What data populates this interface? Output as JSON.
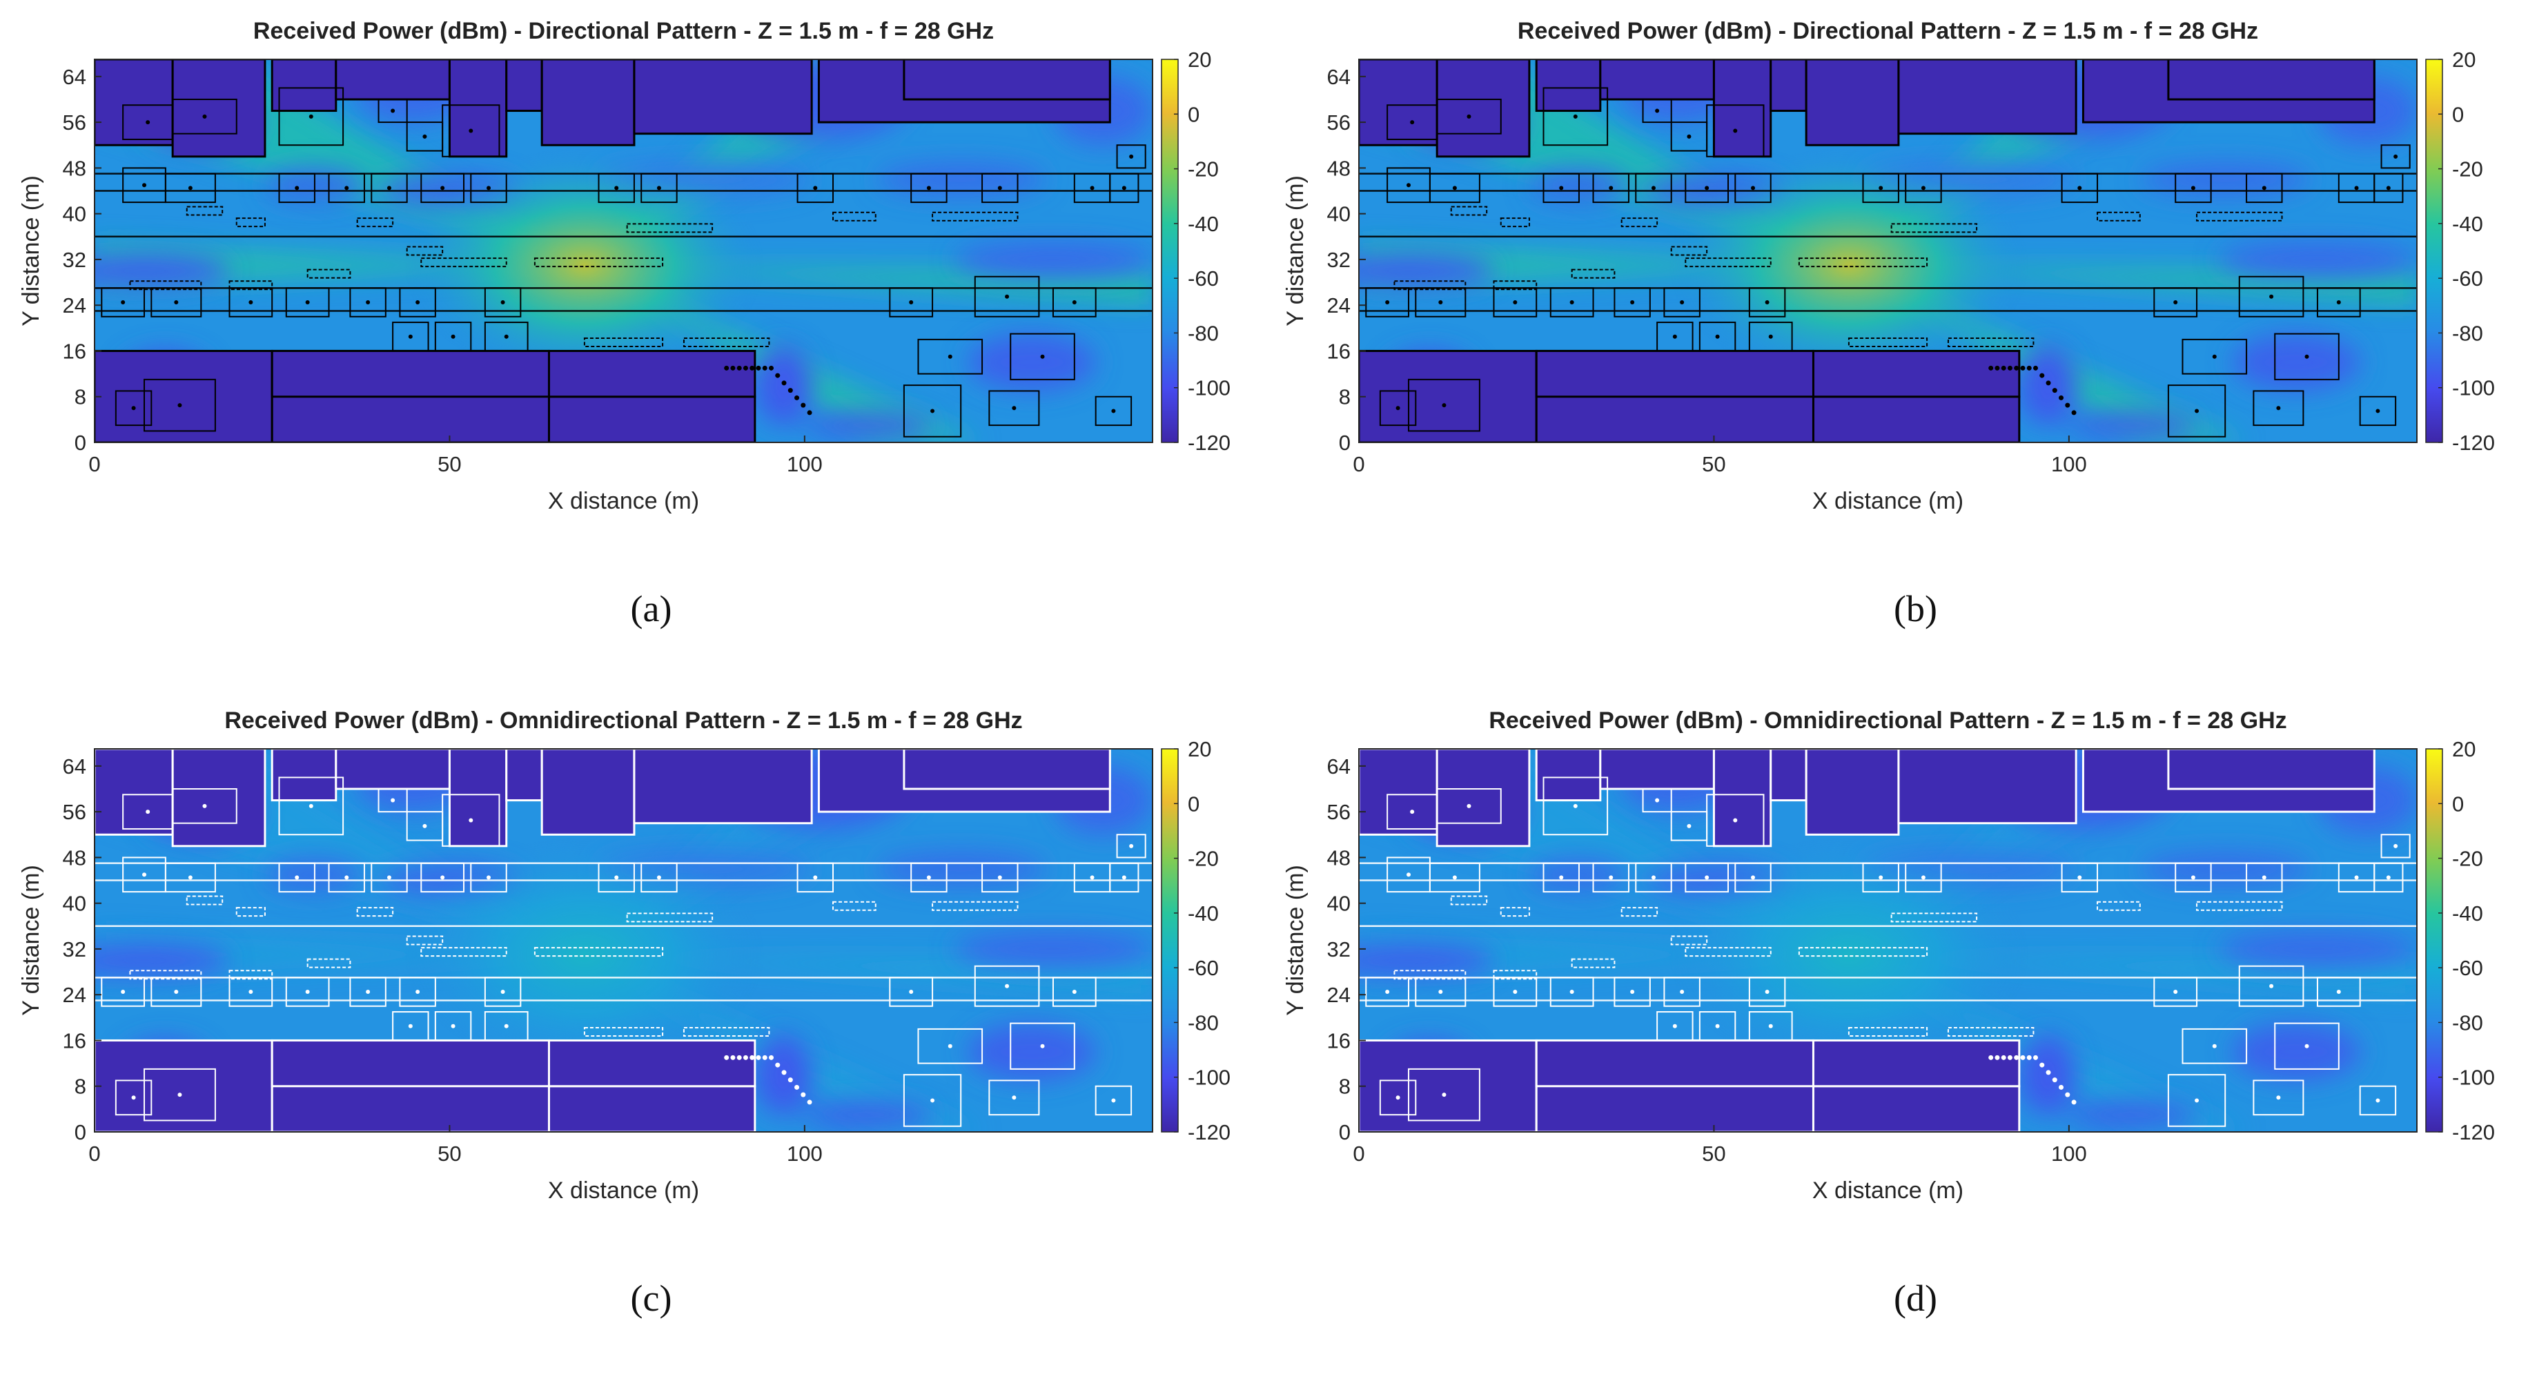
{
  "chart_data": [
    {
      "type": "heatmap",
      "title": "Received Power (dBm) - Directional Pattern - Z = 1.5 m - f = 28 GHz",
      "xlabel": "X distance (m)",
      "ylabel": "Y distance (m)",
      "xticks": [
        0,
        50,
        100
      ],
      "yticks": [
        0,
        8,
        16,
        24,
        32,
        40,
        48,
        56,
        64
      ],
      "xlim": [
        0,
        149
      ],
      "ylim": [
        0,
        67
      ],
      "colorbar": {
        "label": "Received Power (dBm)",
        "ticks": [
          20,
          0,
          -20,
          -40,
          -60,
          -80,
          -100,
          -120
        ],
        "range": [
          -120,
          20
        ]
      },
      "hotspot": {
        "x": 69,
        "y": 31,
        "value_dBm": -10
      },
      "building_outline_color": "#000000",
      "caption": "(a)"
    },
    {
      "type": "heatmap",
      "title": "Received Power (dBm) - Directional Pattern - Z = 1.5 m - f = 28 GHz",
      "xlabel": "X distance (m)",
      "ylabel": "Y distance (m)",
      "xticks": [
        0,
        50,
        100
      ],
      "yticks": [
        0,
        8,
        16,
        24,
        32,
        40,
        48,
        56,
        64
      ],
      "xlim": [
        0,
        149
      ],
      "ylim": [
        0,
        67
      ],
      "colorbar": {
        "label": "Received Power (dBm)",
        "ticks": [
          20,
          0,
          -20,
          -40,
          -60,
          -80,
          -100,
          -120
        ],
        "range": [
          -120,
          20
        ]
      },
      "hotspot": {
        "x": 69,
        "y": 31,
        "value_dBm": -10
      },
      "building_outline_color": "#000000",
      "caption": "(b)"
    },
    {
      "type": "heatmap",
      "title": "Received Power (dBm) - Omnidirectional Pattern - Z = 1.5 m - f = 28 GHz",
      "xlabel": "X distance (m)",
      "ylabel": "Y distance (m)",
      "xticks": [
        0,
        50,
        100
      ],
      "yticks": [
        0,
        8,
        16,
        24,
        32,
        40,
        48,
        56,
        64
      ],
      "xlim": [
        0,
        149
      ],
      "ylim": [
        0,
        67
      ],
      "colorbar": {
        "label": "Received Power (dBm)",
        "ticks": [
          20,
          0,
          -20,
          -40,
          -60,
          -80,
          -100,
          -120
        ],
        "range": [
          -120,
          20
        ]
      },
      "hotspot": {
        "x": 69,
        "y": 31,
        "value_dBm": -55
      },
      "building_outline_color": "#ffffff",
      "caption": "(c)"
    },
    {
      "type": "heatmap",
      "title": "Received Power (dBm) - Omnidirectional Pattern - Z = 1.5 m - f = 28 GHz",
      "xlabel": "X distance (m)",
      "ylabel": "Y distance (m)",
      "xticks": [
        0,
        50,
        100
      ],
      "yticks": [
        0,
        8,
        16,
        24,
        32,
        40,
        48,
        56,
        64
      ],
      "xlim": [
        0,
        149
      ],
      "ylim": [
        0,
        67
      ],
      "colorbar": {
        "label": "Received Power (dBm)",
        "ticks": [
          20,
          0,
          -20,
          -40,
          -60,
          -80,
          -100,
          -120
        ],
        "range": [
          -120,
          20
        ]
      },
      "hotspot": {
        "x": 69,
        "y": 31,
        "value_dBm": -55
      },
      "building_outline_color": "#ffffff",
      "caption": "(d)"
    }
  ],
  "buildings": [
    [
      0,
      52,
      11,
      67
    ],
    [
      11,
      50,
      24,
      67
    ],
    [
      25,
      58,
      34,
      67
    ],
    [
      34,
      60,
      50,
      67
    ],
    [
      50,
      50,
      58,
      67
    ],
    [
      58,
      58,
      63,
      67
    ],
    [
      63,
      52,
      76,
      67
    ],
    [
      76,
      54,
      101,
      67
    ],
    [
      102,
      56,
      143,
      67
    ],
    [
      114,
      60,
      143,
      67
    ],
    [
      0,
      0,
      25,
      16
    ],
    [
      25,
      0,
      64,
      16
    ],
    [
      25,
      8,
      64,
      16
    ],
    [
      64,
      0,
      93,
      8
    ],
    [
      64,
      8,
      93,
      16
    ]
  ],
  "boxes": [
    [
      3,
      3,
      8,
      9
    ],
    [
      7,
      2,
      17,
      11
    ],
    [
      114,
      1,
      122,
      10
    ],
    [
      126,
      3,
      133,
      9
    ],
    [
      141,
      3,
      146,
      8
    ],
    [
      116,
      12,
      125,
      18
    ],
    [
      129,
      11,
      138,
      19
    ],
    [
      42,
      16,
      47,
      21
    ],
    [
      48,
      16,
      53,
      21
    ],
    [
      55,
      16,
      61,
      21
    ],
    [
      1,
      22,
      7,
      27
    ],
    [
      8,
      22,
      15,
      27
    ],
    [
      19,
      22,
      25,
      27
    ],
    [
      27,
      22,
      33,
      27
    ],
    [
      36,
      22,
      41,
      27
    ],
    [
      43,
      22,
      48,
      27
    ],
    [
      55,
      22,
      60,
      27
    ],
    [
      112,
      22,
      118,
      27
    ],
    [
      124,
      22,
      133,
      29
    ],
    [
      135,
      22,
      141,
      27
    ],
    [
      4,
      42,
      10,
      48
    ],
    [
      10,
      42,
      17,
      47
    ],
    [
      26,
      42,
      31,
      47
    ],
    [
      33,
      42,
      38,
      47
    ],
    [
      39,
      42,
      44,
      47
    ],
    [
      46,
      42,
      52,
      47
    ],
    [
      53,
      42,
      58,
      47
    ],
    [
      71,
      42,
      76,
      47
    ],
    [
      77,
      42,
      82,
      47
    ],
    [
      99,
      42,
      104,
      47
    ],
    [
      115,
      42,
      120,
      47
    ],
    [
      125,
      42,
      130,
      47
    ],
    [
      138,
      42,
      143,
      47
    ],
    [
      143,
      42,
      147,
      47
    ],
    [
      144,
      48,
      148,
      52
    ],
    [
      26,
      52,
      35,
      62
    ],
    [
      40,
      56,
      44,
      60
    ],
    [
      44,
      51,
      49,
      56
    ],
    [
      49,
      50,
      57,
      59
    ],
    [
      4,
      53,
      11,
      59
    ],
    [
      11,
      54,
      20,
      60
    ]
  ],
  "blobs": [
    {
      "x": 102,
      "y": 60,
      "rx": 13,
      "ry": 7,
      "v": -92
    },
    {
      "x": 45,
      "y": 61,
      "rx": 8,
      "ry": 5,
      "v": -90
    },
    {
      "x": 10,
      "y": 12,
      "rx": 6,
      "ry": 4,
      "v": -95
    },
    {
      "x": 132,
      "y": 14,
      "rx": 9,
      "ry": 5,
      "v": -92
    },
    {
      "x": 15,
      "y": 56,
      "rx": 8,
      "ry": 5,
      "v": -95
    },
    {
      "x": 7,
      "y": 30,
      "rx": 12,
      "ry": 3,
      "v": -92
    },
    {
      "x": 135,
      "y": 32,
      "rx": 14,
      "ry": 3,
      "v": -90
    },
    {
      "x": 86,
      "y": 46,
      "rx": 15,
      "ry": 3,
      "v": -85
    },
    {
      "x": 122,
      "y": 46,
      "rx": 12,
      "ry": 3,
      "v": -88
    },
    {
      "x": 50,
      "y": 44,
      "rx": 10,
      "ry": 3,
      "v": -90
    },
    {
      "x": 109,
      "y": 3,
      "rx": 9,
      "ry": 2,
      "v": -95
    },
    {
      "x": 142,
      "y": 58,
      "rx": 7,
      "ry": 6,
      "v": -90
    },
    {
      "x": 97,
      "y": 10,
      "rx": 4,
      "ry": 7,
      "v": -95
    },
    {
      "x": 31,
      "y": 45,
      "rx": 7,
      "ry": 3,
      "v": -88
    }
  ]
}
